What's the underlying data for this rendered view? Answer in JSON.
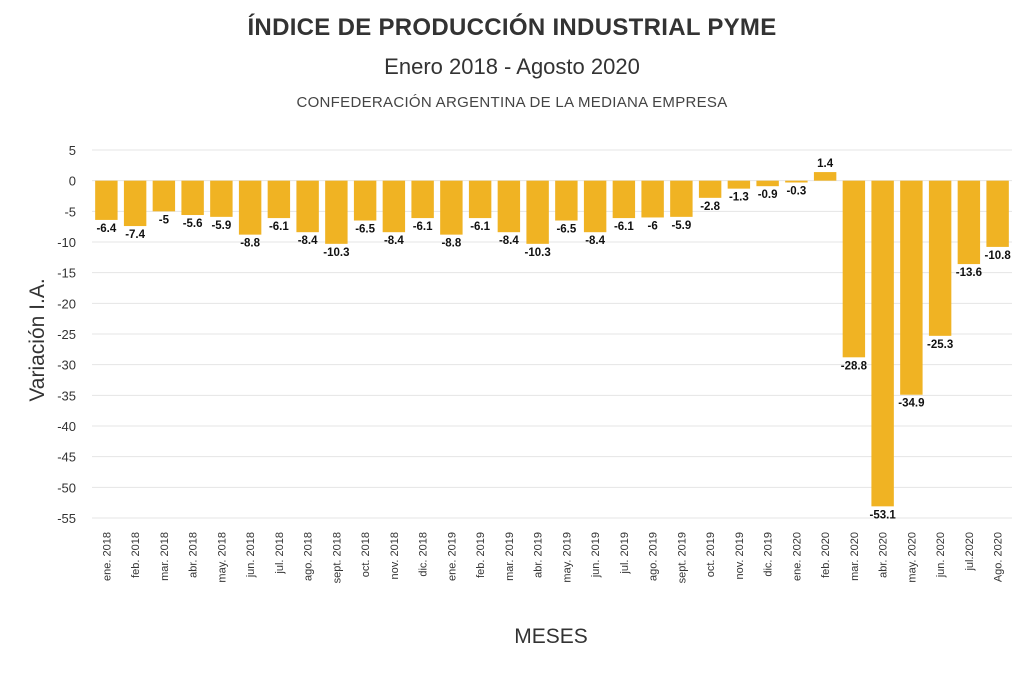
{
  "chart_data": {
    "type": "bar",
    "title": "ÍNDICE DE PRODUCCIÓN INDUSTRIAL PYME",
    "subtitle": "Enero 2018 - Agosto 2020",
    "source": "CONFEDERACIÓN ARGENTINA DE LA MEDIANA EMPRESA",
    "xlabel": "MESES",
    "ylabel": "Variación I.A.",
    "ylim": [
      -55,
      5
    ],
    "yticks": [
      5,
      0,
      -5,
      -10,
      -15,
      -20,
      -25,
      -30,
      -35,
      -40,
      -45,
      -50,
      -55
    ],
    "grid": true,
    "bar_color": "#F0B323",
    "categories": [
      "ene. 2018",
      "feb. 2018",
      "mar. 2018",
      "abr. 2018",
      "may. 2018",
      "jun. 2018",
      "jul. 2018",
      "ago. 2018",
      "sept. 2018",
      "oct. 2018",
      "nov. 2018",
      "dic. 2018",
      "ene. 2019",
      "feb. 2019",
      "mar. 2019",
      "abr. 2019",
      "may. 2019",
      "jun. 2019",
      "jul. 2019",
      "ago. 2019",
      "sept. 2019",
      "oct. 2019",
      "nov. 2019",
      "dic. 2019",
      "ene. 2020",
      "feb. 2020",
      "mar. 2020",
      "abr. 2020",
      "may. 2020",
      "jun. 2020",
      "jul.2020",
      "Ago. 2020"
    ],
    "values": [
      -6.4,
      -7.4,
      -5,
      -5.6,
      -5.9,
      -8.8,
      -6.1,
      -8.4,
      -10.3,
      -6.5,
      -8.4,
      -6.1,
      -8.8,
      -6.1,
      -8.4,
      -10.3,
      -6.5,
      -8.4,
      -6.1,
      -6,
      -5.9,
      -2.8,
      -1.3,
      -0.9,
      -0.3,
      1.4,
      -28.8,
      -53.1,
      -34.9,
      -25.3,
      -13.6,
      -10.8
    ],
    "data_labels": [
      "-6.4",
      "-7.4",
      "-5",
      "-5.6",
      "-5.9",
      "-8.8",
      "-6.1",
      "-8.4",
      "-10.3",
      "-6.5",
      "-8.4",
      "-6.1",
      "-8.8",
      "-6.1",
      "-8.4",
      "-10.3",
      "-6.5",
      "-8.4",
      "-6.1",
      "-6",
      "-5.9",
      "-2.8",
      "-1.3",
      "-0.9",
      "-0.3",
      "1.4",
      "-28.8",
      "-53.1",
      "-34.9",
      "-25.3",
      "-13.6",
      "-10.8"
    ]
  }
}
